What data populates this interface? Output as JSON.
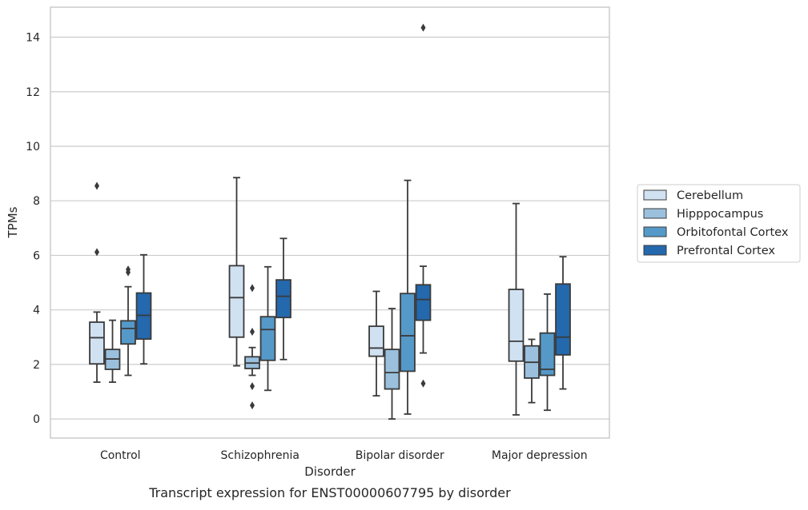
{
  "chart_data": {
    "type": "box",
    "caption": "Transcript expression for ENST00000607795 by disorder",
    "xlabel": "Disorder",
    "ylabel": "TPMs",
    "ylim": [
      -0.7,
      15.1
    ],
    "yticks": [
      0,
      2,
      4,
      6,
      8,
      10,
      12,
      14
    ],
    "grid": "horizontal",
    "legend_position": "right",
    "categories": [
      "Control",
      "Schizophrenia",
      "Bipolar disorder",
      "Major depression"
    ],
    "series": [
      {
        "name": "Cerebellum",
        "color": "#d0e1f2",
        "boxes": [
          {
            "whislo": 1.35,
            "q1": 2.02,
            "med": 2.98,
            "q3": 3.55,
            "whishi": 3.92,
            "fliers": [
              6.12,
              8.55
            ]
          },
          {
            "whislo": 1.95,
            "q1": 3.0,
            "med": 4.45,
            "q3": 5.62,
            "whishi": 8.85,
            "fliers": []
          },
          {
            "whislo": 0.85,
            "q1": 2.3,
            "med": 2.6,
            "q3": 3.4,
            "whishi": 4.68,
            "fliers": []
          },
          {
            "whislo": 0.15,
            "q1": 2.12,
            "med": 2.85,
            "q3": 4.75,
            "whishi": 7.9,
            "fliers": []
          }
        ]
      },
      {
        "name": "Hipppocampus",
        "color": "#9ac0dd",
        "boxes": [
          {
            "whislo": 1.35,
            "q1": 1.82,
            "med": 2.2,
            "q3": 2.55,
            "whishi": 3.62,
            "fliers": []
          },
          {
            "whislo": 1.6,
            "q1": 1.85,
            "med": 2.05,
            "q3": 2.28,
            "whishi": 2.62,
            "fliers": [
              0.5,
              1.2,
              3.2,
              4.8
            ]
          },
          {
            "whislo": 0.0,
            "q1": 1.1,
            "med": 1.7,
            "q3": 2.55,
            "whishi": 4.05,
            "fliers": []
          },
          {
            "whislo": 0.6,
            "q1": 1.5,
            "med": 2.08,
            "q3": 2.68,
            "whishi": 2.92,
            "fliers": []
          }
        ]
      },
      {
        "name": "Orbitofontal Cortex",
        "color": "#5599c8",
        "boxes": [
          {
            "whislo": 1.6,
            "q1": 2.75,
            "med": 3.32,
            "q3": 3.6,
            "whishi": 4.85,
            "fliers": [
              5.38,
              5.48
            ]
          },
          {
            "whislo": 1.05,
            "q1": 2.15,
            "med": 3.28,
            "q3": 3.75,
            "whishi": 5.58,
            "fliers": []
          },
          {
            "whislo": 0.18,
            "q1": 1.75,
            "med": 3.05,
            "q3": 4.6,
            "whishi": 8.75,
            "fliers": []
          },
          {
            "whislo": 0.32,
            "q1": 1.6,
            "med": 1.82,
            "q3": 3.15,
            "whishi": 4.58,
            "fliers": []
          }
        ]
      },
      {
        "name": "Prefrontal Cortex",
        "color": "#2468ad",
        "boxes": [
          {
            "whislo": 2.02,
            "q1": 2.93,
            "med": 3.8,
            "q3": 4.62,
            "whishi": 6.02,
            "fliers": []
          },
          {
            "whislo": 2.18,
            "q1": 3.72,
            "med": 4.5,
            "q3": 5.1,
            "whishi": 6.62,
            "fliers": []
          },
          {
            "whislo": 2.42,
            "q1": 3.62,
            "med": 4.38,
            "q3": 4.92,
            "whishi": 5.6,
            "fliers": [
              1.3,
              14.35
            ]
          },
          {
            "whislo": 1.1,
            "q1": 2.35,
            "med": 3.0,
            "q3": 4.95,
            "whishi": 5.95,
            "fliers": []
          }
        ]
      }
    ]
  }
}
